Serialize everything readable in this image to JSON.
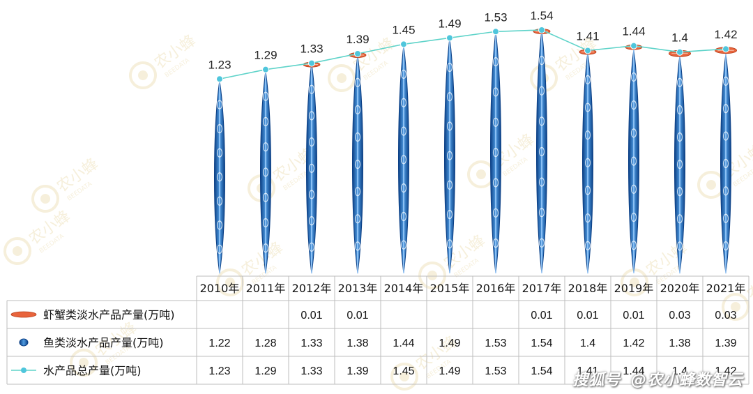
{
  "chart_data": {
    "type": "line",
    "categories": [
      "2010年",
      "2011年",
      "2012年",
      "2013年",
      "2014年",
      "2015年",
      "2016年",
      "2017年",
      "2018年",
      "2019年",
      "2020年",
      "2021年"
    ],
    "series": [
      {
        "name": "虾蟹类淡水产品产量(万吨)",
        "mark": "pictorial-bar",
        "values": [
          null,
          null,
          0.01,
          0.01,
          null,
          null,
          null,
          0.01,
          0.01,
          0.01,
          0.03,
          0.03
        ],
        "table_values": [
          "",
          "",
          "0.01",
          "0.01",
          "",
          "",
          "",
          "0.01",
          "0.01",
          "0.01",
          "0.03",
          "0.03"
        ],
        "color": "#e8643c"
      },
      {
        "name": "鱼类淡水产品产量(万吨)",
        "mark": "pictorial-bar",
        "values": [
          1.22,
          1.28,
          1.33,
          1.38,
          1.44,
          1.49,
          1.53,
          1.54,
          1.4,
          1.42,
          1.38,
          1.39
        ],
        "table_values": [
          "1.22",
          "1.28",
          "1.33",
          "1.38",
          "1.44",
          "1.49",
          "1.53",
          "1.54",
          "1.4",
          "1.42",
          "1.38",
          "1.39"
        ],
        "color": "#1f5fa6"
      },
      {
        "name": "水产品总产量(万吨)",
        "mark": "line",
        "values": [
          1.23,
          1.29,
          1.33,
          1.39,
          1.45,
          1.49,
          1.53,
          1.54,
          1.41,
          1.44,
          1.4,
          1.42
        ],
        "table_values": [
          "1.23",
          "1.29",
          "1.33",
          "1.39",
          "1.45",
          "1.49",
          "1.53",
          "1.54",
          "1.41",
          "1.44",
          "1.4",
          "1.42"
        ],
        "color": "#5ed3c9",
        "marker_color": "#4fc6dc"
      }
    ],
    "data_labels": [
      "1.23",
      "1.29",
      "1.33",
      "1.39",
      "1.45",
      "1.49",
      "1.53",
      "1.54",
      "1.41",
      "1.44",
      "1.4",
      "1.42"
    ],
    "ylim": [
      0,
      1.54
    ],
    "legend": "data-table",
    "grid": false
  },
  "watermark": {
    "brand": "农小蜂",
    "brand_en": "BEEDATA"
  },
  "footer": {
    "platform": "搜狐号",
    "handle": "@农小蜂数智云"
  }
}
